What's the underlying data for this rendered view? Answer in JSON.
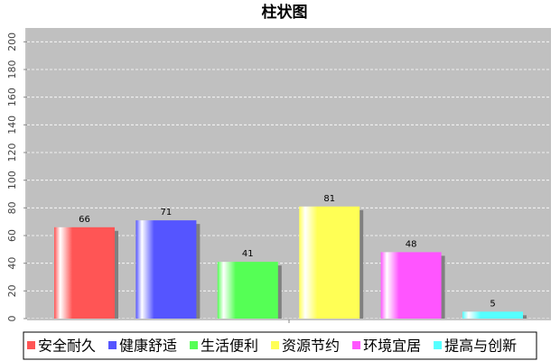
{
  "chart_data": {
    "type": "bar",
    "title": "柱状图",
    "series": [
      {
        "name": "安全耐久",
        "color": "#ff5555",
        "values": [
          66
        ]
      },
      {
        "name": "健康舒适",
        "color": "#5555ff",
        "values": [
          71
        ]
      },
      {
        "name": "生活便利",
        "color": "#55ff55",
        "values": [
          41
        ]
      },
      {
        "name": "资源节约",
        "color": "#ffff55",
        "values": [
          81
        ]
      },
      {
        "name": "环境宜居",
        "color": "#ff55ff",
        "values": [
          48
        ]
      },
      {
        "name": "提高与创新",
        "color": "#55ffff",
        "values": [
          5
        ]
      }
    ],
    "ylim": [
      0,
      210
    ],
    "yticks": [
      0,
      20,
      40,
      60,
      80,
      100,
      120,
      140,
      160,
      180,
      200
    ],
    "grid": true
  }
}
